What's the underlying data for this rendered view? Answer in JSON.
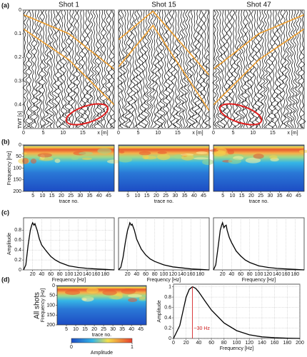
{
  "panel_labels": [
    "(a)",
    "(b)",
    "(c)",
    "(d)"
  ],
  "row_label": "All shots",
  "chart_data": [
    {
      "type": "wiggle",
      "title": "Shot 1",
      "ylabel": "TWT [s]",
      "xlabel": "x [m]",
      "ylim": [
        0,
        0.5
      ],
      "yticks": [
        0,
        0.1,
        0.2,
        0.3,
        0.4
      ],
      "yinvert": true,
      "xlim": [
        0,
        23
      ],
      "xticks": [
        0,
        5,
        10,
        15
      ]
    },
    {
      "type": "wiggle",
      "title": "Shot 15",
      "xlabel": "x [m]",
      "ylim": [
        0,
        0.5
      ],
      "yinvert": true,
      "xlim": [
        0,
        23
      ],
      "xticks": [
        0,
        5,
        10,
        15
      ]
    },
    {
      "type": "wiggle",
      "title": "Shot 47",
      "xlabel": "x [m]",
      "ylim": [
        0,
        0.5
      ],
      "yinvert": true,
      "xlim": [
        0,
        23
      ],
      "xticks": [
        0,
        5,
        10,
        15
      ]
    },
    {
      "type": "heatmap",
      "ylabel": "Frequency [Hz]",
      "xlabel": "trace no.",
      "ylim": [
        0,
        200
      ],
      "yticks": [
        0,
        50,
        100,
        150,
        200
      ],
      "yinvert": true,
      "xlim": [
        0,
        48
      ],
      "xticks": [
        5,
        10,
        15,
        20,
        25,
        30,
        35,
        40,
        45
      ]
    },
    {
      "type": "heatmap",
      "xlabel": "trace no.",
      "ylim": [
        0,
        200
      ],
      "yinvert": true,
      "xlim": [
        0,
        48
      ],
      "xticks": [
        5,
        10,
        15,
        20,
        25,
        30,
        35,
        40,
        45
      ]
    },
    {
      "type": "heatmap",
      "xlabel": "trace no.",
      "ylim": [
        0,
        200
      ],
      "yinvert": true,
      "xlim": [
        0,
        48
      ],
      "xticks": [
        5,
        10,
        15,
        20,
        25,
        30,
        35,
        40,
        45
      ]
    },
    {
      "type": "line",
      "ylabel": "Amplitude",
      "xlabel": "Frequency [Hz]",
      "ylim": [
        0,
        1.05
      ],
      "yticks": [
        0,
        0.2,
        0.4,
        0.6,
        0.8
      ],
      "xlim": [
        0,
        200
      ],
      "xticks": [
        20,
        40,
        60,
        80,
        100,
        120,
        140,
        160,
        180
      ],
      "grid": true,
      "x": [
        0,
        5,
        10,
        15,
        18,
        20,
        23,
        25,
        28,
        30,
        35,
        40,
        50,
        60,
        70,
        80,
        100,
        120,
        140,
        160,
        180,
        200
      ],
      "series": [
        {
          "color": "#000000",
          "values": [
            0,
            0.1,
            0.5,
            0.8,
            0.9,
            0.95,
            0.9,
            0.93,
            0.85,
            0.8,
            0.62,
            0.5,
            0.38,
            0.27,
            0.2,
            0.15,
            0.08,
            0.05,
            0.03,
            0.02,
            0.01,
            0
          ]
        }
      ]
    },
    {
      "type": "line",
      "xlabel": "Frequency [Hz]",
      "ylim": [
        0,
        1.05
      ],
      "xlim": [
        0,
        200
      ],
      "xticks": [
        20,
        40,
        60,
        80,
        100,
        120,
        140,
        160,
        180
      ],
      "grid": true,
      "x": [
        0,
        5,
        10,
        15,
        18,
        20,
        23,
        25,
        28,
        30,
        35,
        40,
        50,
        60,
        70,
        80,
        100,
        120,
        140,
        160,
        180,
        200
      ],
      "series": [
        {
          "color": "#000000",
          "values": [
            0,
            0.05,
            0.25,
            0.55,
            0.7,
            0.8,
            0.88,
            0.95,
            0.9,
            0.92,
            0.8,
            0.62,
            0.42,
            0.3,
            0.22,
            0.17,
            0.1,
            0.06,
            0.04,
            0.02,
            0.01,
            0
          ]
        }
      ]
    },
    {
      "type": "line",
      "xlabel": "Frequency [Hz]",
      "ylim": [
        0,
        1.05
      ],
      "xlim": [
        0,
        200
      ],
      "xticks": [
        20,
        40,
        60,
        80,
        100,
        120,
        140,
        160,
        180
      ],
      "grid": true,
      "x": [
        0,
        5,
        10,
        15,
        18,
        20,
        23,
        25,
        28,
        30,
        35,
        40,
        50,
        60,
        70,
        80,
        100,
        120,
        140,
        160,
        180,
        200
      ],
      "series": [
        {
          "color": "#000000",
          "values": [
            0,
            0.1,
            0.45,
            0.8,
            0.9,
            0.95,
            0.85,
            0.88,
            0.9,
            0.8,
            0.65,
            0.55,
            0.38,
            0.28,
            0.2,
            0.15,
            0.08,
            0.05,
            0.03,
            0.02,
            0.01,
            0
          ]
        }
      ]
    },
    {
      "type": "heatmap",
      "ylabel": "Frequency [Hz]",
      "xlabel": "trace no.",
      "ylim": [
        0,
        200
      ],
      "yticks": [
        0,
        50,
        100,
        150,
        200
      ],
      "yinvert": true,
      "xlim": [
        0,
        48
      ],
      "xticks": [
        5,
        10,
        15,
        20,
        25,
        30,
        35,
        40,
        45
      ],
      "colorbar": {
        "label": "Amplitude",
        "ticks": [
          0,
          1
        ]
      }
    },
    {
      "type": "line",
      "ylabel": "Amplitude",
      "xlabel": "Frequency [Hz]",
      "ylim": [
        0,
        1.05
      ],
      "yticks": [
        0,
        0.2,
        0.4,
        0.6,
        0.8,
        1
      ],
      "xlim": [
        0,
        200
      ],
      "xticks": [
        0,
        20,
        40,
        60,
        80,
        100,
        120,
        140,
        160,
        180,
        200
      ],
      "grid": true,
      "x": [
        0,
        10,
        20,
        25,
        30,
        35,
        40,
        50,
        60,
        80,
        100,
        120,
        140,
        160,
        180,
        200
      ],
      "series": [
        {
          "color": "#000000",
          "values": [
            0,
            0.25,
            0.8,
            0.95,
            1,
            0.97,
            0.9,
            0.72,
            0.55,
            0.3,
            0.15,
            0.07,
            0.03,
            0.015,
            0.005,
            0
          ]
        }
      ],
      "annotation": {
        "text": "~30 Hz",
        "x": 30,
        "color": "#d62728"
      }
    }
  ]
}
